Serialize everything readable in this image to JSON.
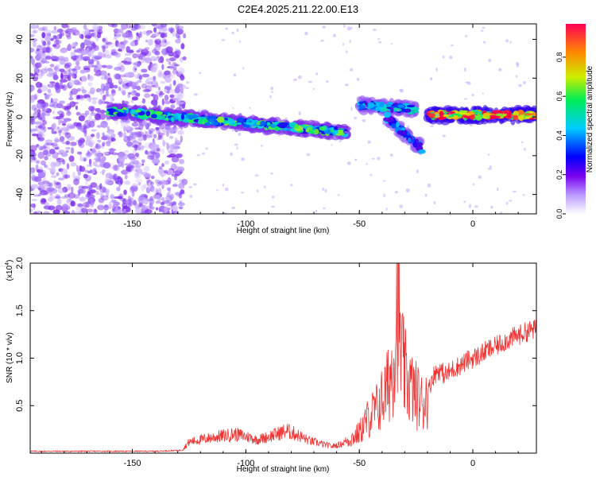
{
  "title": "C2E4.2025.211.22.00.E13",
  "chart_data": [
    {
      "type": "heatmap",
      "xlabel": "Height of straight line (km)",
      "ylabel": "Frequency (Hz)",
      "xlim": [
        -195,
        28
      ],
      "ylim": [
        -50,
        48
      ],
      "xticks": [
        -150,
        -100,
        -50,
        0
      ],
      "xtick_labels": [
        "-150",
        "-100",
        "-50",
        "0"
      ],
      "yticks": [
        -40,
        -20,
        0,
        20,
        40
      ],
      "ytick_labels": [
        "-40",
        "-20",
        "0",
        "20",
        "40"
      ],
      "colorbar": {
        "label": "Normalized spectral amplitude",
        "range": [
          0,
          0.97
        ],
        "ticks": [
          0.0,
          0.2,
          0.4,
          0.6,
          0.8
        ],
        "tick_labels": [
          "0.0",
          "0.2",
          "0.4",
          "0.6",
          "0.8"
        ],
        "colormap": [
          "#ffffff",
          "#9966ff",
          "#6600dd",
          "#0000ff",
          "#00ccff",
          "#00ee66",
          "#ddee00",
          "#ff8800",
          "#ff0044"
        ]
      },
      "features": [
        {
          "name": "scattered noise region",
          "x": [
            -195,
            -127
          ],
          "y": [
            -50,
            48
          ],
          "amplitude": 0.15
        },
        {
          "name": "main signal ridge",
          "x": [
            -160,
            -55
          ],
          "y_start": 3,
          "y_end": -8,
          "amplitude": 0.55
        },
        {
          "name": "upper branch",
          "x": [
            -50,
            -25
          ],
          "y_start": 6,
          "y_end": 4,
          "amplitude": 0.45
        },
        {
          "name": "descending branch",
          "x": [
            -38,
            -22
          ],
          "y_start": 0,
          "y_end": -17,
          "amplitude": 0.4
        },
        {
          "name": "steady signal",
          "x": [
            -20,
            28
          ],
          "y_start": 1,
          "y_end": 1,
          "amplitude": 0.9
        }
      ],
      "grid": false
    },
    {
      "type": "line",
      "xlabel": "Height of straight line (km)",
      "ylabel": "SNR (10 * v/v)",
      "yscale_label": "(x10",
      "yscale_exp": "4",
      "yscale_close": ")",
      "xlim": [
        -195,
        28
      ],
      "ylim": [
        0,
        2.0
      ],
      "xticks": [
        -150,
        -100,
        -50,
        0
      ],
      "xtick_labels": [
        "-150",
        "-100",
        "-50",
        "0"
      ],
      "yticks": [
        0.5,
        1.0,
        1.5,
        2.0
      ],
      "ytick_labels": [
        "0.5",
        "1.0",
        "1.5",
        "2.0"
      ],
      "series": [
        {
          "color": "#ee3333",
          "x": [
            -195,
            -180,
            -160,
            -140,
            -128,
            -125,
            -115,
            -105,
            -100,
            -95,
            -88,
            -82,
            -78,
            -72,
            -68,
            -62,
            -58,
            -55,
            -50,
            -46,
            -42,
            -38,
            -35,
            -34,
            -33,
            -32,
            -30,
            -28,
            -26,
            -24,
            -22,
            -20,
            -18,
            -15,
            -12,
            -8,
            -5,
            -2,
            0,
            3,
            6,
            10,
            14,
            18,
            22,
            26,
            28
          ],
          "y": [
            0.02,
            0.02,
            0.02,
            0.02,
            0.03,
            0.1,
            0.14,
            0.17,
            0.15,
            0.12,
            0.16,
            0.2,
            0.17,
            0.11,
            0.09,
            0.06,
            0.08,
            0.12,
            0.2,
            0.35,
            0.45,
            0.62,
            0.9,
            1.3,
            1.55,
            1.05,
            0.78,
            0.68,
            0.6,
            0.55,
            0.48,
            0.6,
            0.8,
            0.88,
            0.82,
            0.9,
            0.93,
            0.98,
            1.0,
            1.03,
            1.08,
            1.12,
            1.18,
            1.22,
            1.26,
            1.3,
            1.3
          ]
        }
      ],
      "grid": false
    }
  ]
}
